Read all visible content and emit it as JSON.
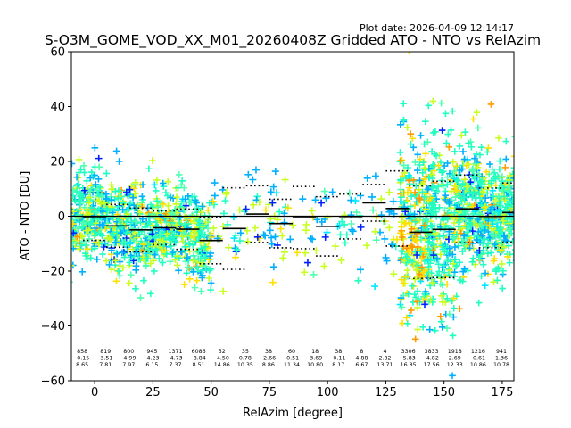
{
  "chart_data": {
    "type": "scatter",
    "plot_date": "Plot date: 2026-04-09 12:14:17",
    "title": "S-O3M_GOME_VOD_XX_M01_20260408Z Gridded ATO - NTO vs RelAzim",
    "xlabel": "RelAzim [degree]",
    "ylabel": "ATO - NTO [DU]",
    "xlim": [
      -10,
      180
    ],
    "ylim": [
      -60,
      60
    ],
    "xticks": [
      0,
      25,
      50,
      75,
      100,
      125,
      150,
      175
    ],
    "yticks": [
      -60,
      -40,
      -20,
      0,
      20,
      40,
      60
    ],
    "bins": [
      {
        "x": 0,
        "count": "858",
        "mean": "-0.15",
        "std": "8.65"
      },
      {
        "x": 10,
        "count": "819",
        "mean": "-3.51",
        "std": "7.81"
      },
      {
        "x": 20,
        "count": "800",
        "mean": "-4.99",
        "std": "7.97"
      },
      {
        "x": 30,
        "count": "945",
        "mean": "-4.23",
        "std": "6.15"
      },
      {
        "x": 40,
        "count": "1371",
        "mean": "-4.73",
        "std": "7.37"
      },
      {
        "x": 50,
        "count": "6086",
        "mean": "-8.84",
        "std": "8.51"
      },
      {
        "x": 60,
        "count": "52",
        "mean": "-4.50",
        "std": "14.86"
      },
      {
        "x": 70,
        "count": "35",
        "mean": "0.78",
        "std": "10.35"
      },
      {
        "x": 80,
        "count": "38",
        "mean": "-2.66",
        "std": "8.86"
      },
      {
        "x": 90,
        "count": "60",
        "mean": "-0.51",
        "std": "11.34"
      },
      {
        "x": 100,
        "count": "18",
        "mean": "-3.69",
        "std": "10.80"
      },
      {
        "x": 110,
        "count": "38",
        "mean": "-0.11",
        "std": "8.17"
      },
      {
        "x": 120,
        "count": "8",
        "mean": "4.88",
        "std": "6.67"
      },
      {
        "x": 130,
        "count": "4",
        "mean": "2.82",
        "std": "13.71"
      },
      {
        "x": 140,
        "count": "3306",
        "mean": "-5.83",
        "std": "16.85"
      },
      {
        "x": 150,
        "count": "3833",
        "mean": "-4.82",
        "std": "17.56"
      },
      {
        "x": 160,
        "count": "1918",
        "mean": "2.69",
        "std": "12.33"
      },
      {
        "x": 170,
        "count": "1216",
        "mean": "-0.61",
        "std": "10.86"
      },
      {
        "x": 180,
        "count": "941",
        "mean": "1.36",
        "std": "10.78"
      }
    ],
    "point_colors": [
      "#00b0ff",
      "#20ffc0",
      "#50ffb0",
      "#c8ff20",
      "#ffe000",
      "#ff9a00",
      "#0020ff",
      "#00e8ff"
    ]
  }
}
